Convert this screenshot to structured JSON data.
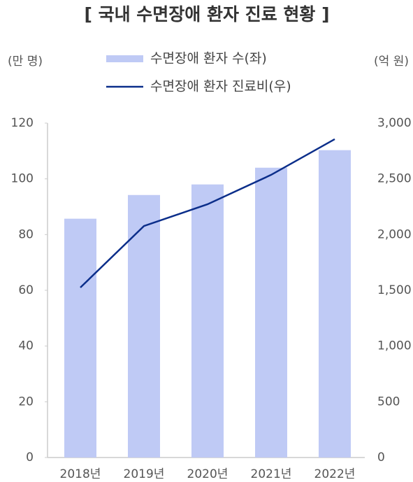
{
  "chart_data": {
    "type": "bar-line",
    "title": "[ 국내 수면장애 환자 진료 현황 ]",
    "y_label": "(만 명)",
    "y2_label": "(억 원)",
    "categories": [
      "2018년",
      "2019년",
      "2020년",
      "2021년",
      "2022년"
    ],
    "series": [
      {
        "name": "수면장애 환자 수(좌)",
        "type": "bar",
        "color": "#bfcaf5",
        "values": [
          85.7,
          94.2,
          98,
          104,
          110.3
        ]
      },
      {
        "name": "수면장애 환자 진료비(우)",
        "type": "line",
        "axis": "y2",
        "color": "#0b2e8a",
        "values": [
          1525,
          2077,
          2272,
          2536,
          2856
        ]
      }
    ],
    "ylim": [
      0,
      120
    ],
    "yticks": [
      0,
      20,
      40,
      60,
      80,
      100,
      120
    ],
    "y2lim": [
      0,
      3000
    ],
    "y2ticks": [
      0,
      500,
      {
        "value": 1000,
        "label": "1,000"
      },
      {
        "value": 1500,
        "label": "1,500"
      },
      {
        "value": 2000,
        "label": "2,000"
      },
      {
        "value": 2500,
        "label": "2,500"
      },
      {
        "value": 3000,
        "label": "3,000"
      }
    ]
  }
}
